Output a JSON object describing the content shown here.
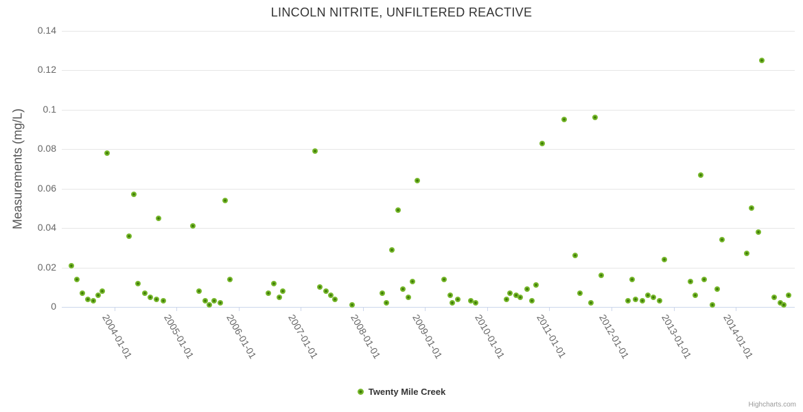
{
  "chart": {
    "title": "LINCOLN NITRITE, UNFILTERED REACTIVE",
    "credit": "Highcharts.com"
  },
  "legend": {
    "series_label": "Twenty Mile Creek"
  },
  "colors": {
    "marker_fill": "#76b72b",
    "marker_center": "#3c7a05",
    "gridline": "#e6e6e6",
    "axis_line": "#ccd6eb",
    "axis_label": "#666666",
    "title_text": "#333333",
    "credit_text": "#999999"
  },
  "chart_data": {
    "type": "scatter",
    "title": "LINCOLN NITRITE, UNFILTERED REACTIVE",
    "xlabel": "",
    "ylabel": "Measurements (mg/L)",
    "ylim": [
      0,
      0.14
    ],
    "xlim_decimal_years": [
      2003.15,
      2014.95
    ],
    "grid": "horizontal",
    "legend_position": "bottom-center",
    "y_ticks": [
      0,
      0.02,
      0.04,
      0.06,
      0.08,
      0.1,
      0.12,
      0.14
    ],
    "y_tick_labels": [
      "0",
      "0.02",
      "0.04",
      "0.06",
      "0.08",
      "0.1",
      "0.12",
      "0.14"
    ],
    "x_tick_labels": [
      "2004-01-01",
      "2005-01-01",
      "2006-01-01",
      "2007-01-01",
      "2008-01-01",
      "2009-01-01",
      "2010-01-01",
      "2011-01-01",
      "2012-01-01",
      "2013-01-01",
      "2014-01-01"
    ],
    "series": [
      {
        "name": "Twenty Mile Creek",
        "marker_color": "#76b72b",
        "points_format": "[decimal_year, mg_per_L]",
        "points": [
          [
            2003.31,
            0.021
          ],
          [
            2003.39,
            0.014
          ],
          [
            2003.48,
            0.007
          ],
          [
            2003.57,
            0.004
          ],
          [
            2003.66,
            0.003
          ],
          [
            2003.74,
            0.006
          ],
          [
            2003.8,
            0.008
          ],
          [
            2003.88,
            0.078
          ],
          [
            2004.23,
            0.036
          ],
          [
            2004.31,
            0.057
          ],
          [
            2004.38,
            0.012
          ],
          [
            2004.49,
            0.007
          ],
          [
            2004.58,
            0.005
          ],
          [
            2004.67,
            0.004
          ],
          [
            2004.71,
            0.045
          ],
          [
            2004.78,
            0.003
          ],
          [
            2005.26,
            0.041
          ],
          [
            2005.36,
            0.008
          ],
          [
            2005.46,
            0.003
          ],
          [
            2005.52,
            0.001
          ],
          [
            2005.6,
            0.003
          ],
          [
            2005.7,
            0.002
          ],
          [
            2005.78,
            0.054
          ],
          [
            2005.86,
            0.014
          ],
          [
            2006.48,
            0.007
          ],
          [
            2006.56,
            0.012
          ],
          [
            2006.65,
            0.005
          ],
          [
            2006.71,
            0.008
          ],
          [
            2007.23,
            0.079
          ],
          [
            2007.3,
            0.01
          ],
          [
            2007.4,
            0.008
          ],
          [
            2007.48,
            0.006
          ],
          [
            2007.55,
            0.004
          ],
          [
            2007.82,
            0.001
          ],
          [
            2008.31,
            0.007
          ],
          [
            2008.38,
            0.002
          ],
          [
            2008.46,
            0.029
          ],
          [
            2008.56,
            0.049
          ],
          [
            2008.64,
            0.009
          ],
          [
            2008.73,
            0.005
          ],
          [
            2008.8,
            0.013
          ],
          [
            2008.87,
            0.064
          ],
          [
            2009.3,
            0.014
          ],
          [
            2009.4,
            0.006
          ],
          [
            2009.44,
            0.002
          ],
          [
            2009.53,
            0.004
          ],
          [
            2009.73,
            0.003
          ],
          [
            2009.81,
            0.002
          ],
          [
            2010.31,
            0.004
          ],
          [
            2010.37,
            0.007
          ],
          [
            2010.46,
            0.006
          ],
          [
            2010.53,
            0.005
          ],
          [
            2010.64,
            0.009
          ],
          [
            2010.72,
            0.003
          ],
          [
            2010.79,
            0.011
          ],
          [
            2010.88,
            0.083
          ],
          [
            2011.24,
            0.095
          ],
          [
            2011.41,
            0.026
          ],
          [
            2011.49,
            0.007
          ],
          [
            2011.67,
            0.002
          ],
          [
            2011.73,
            0.096
          ],
          [
            2011.83,
            0.016
          ],
          [
            2012.27,
            0.003
          ],
          [
            2012.33,
            0.014
          ],
          [
            2012.39,
            0.004
          ],
          [
            2012.5,
            0.003
          ],
          [
            2012.59,
            0.006
          ],
          [
            2012.67,
            0.005
          ],
          [
            2012.77,
            0.003
          ],
          [
            2012.85,
            0.024
          ],
          [
            2013.27,
            0.013
          ],
          [
            2013.35,
            0.006
          ],
          [
            2013.44,
            0.067
          ],
          [
            2013.49,
            0.014
          ],
          [
            2013.62,
            0.001
          ],
          [
            2013.7,
            0.009
          ],
          [
            2013.78,
            0.034
          ],
          [
            2014.18,
            0.027
          ],
          [
            2014.25,
            0.05
          ],
          [
            2014.36,
            0.038
          ],
          [
            2014.42,
            0.125
          ],
          [
            2014.62,
            0.005
          ],
          [
            2014.72,
            0.002
          ],
          [
            2014.77,
            0.001
          ],
          [
            2014.85,
            0.006
          ]
        ]
      }
    ]
  }
}
